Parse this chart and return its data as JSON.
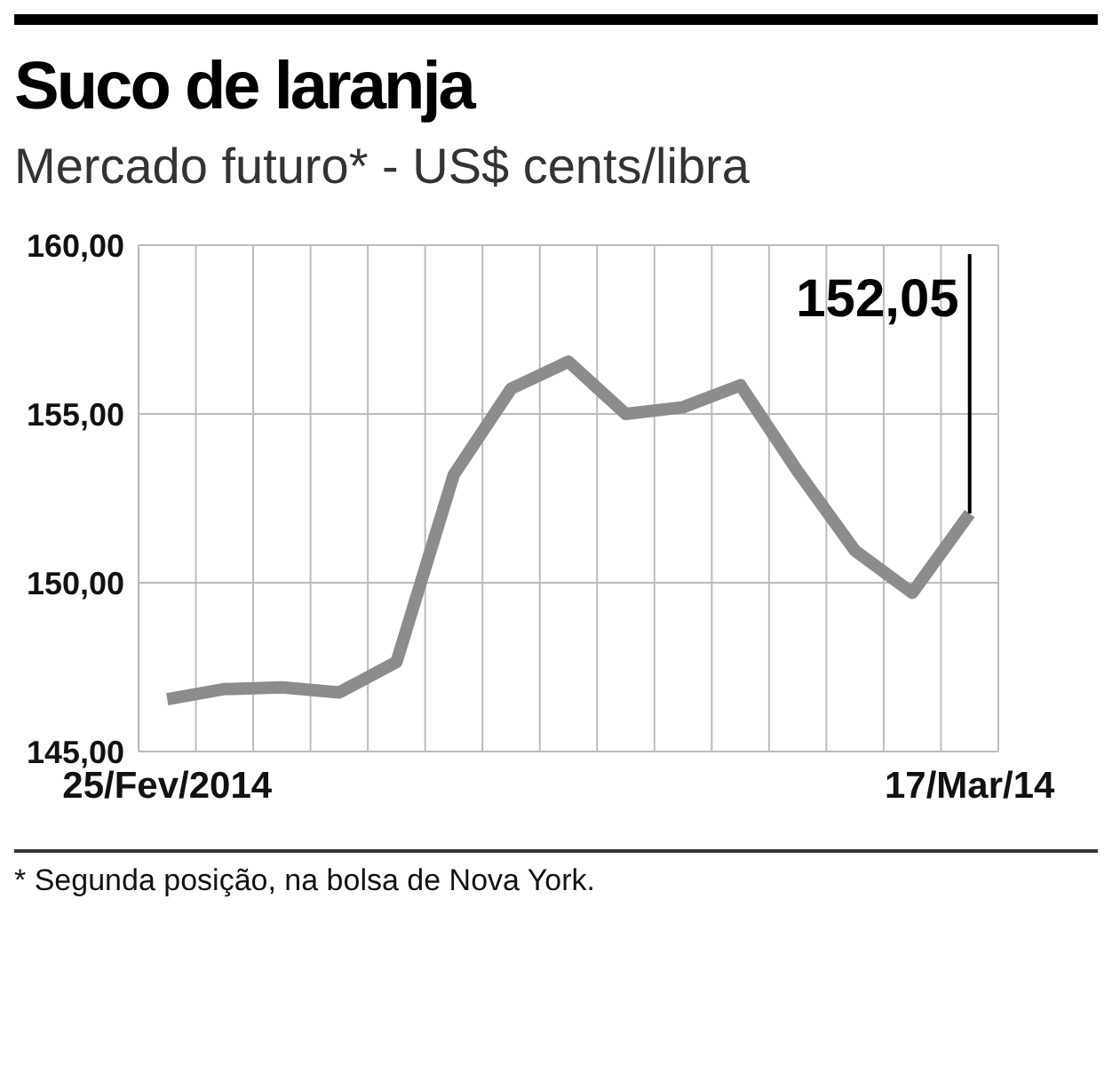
{
  "chart_data": {
    "type": "line",
    "title": "Suco de laranja",
    "subtitle": "Mercado futuro* - US$ cents/libra",
    "categories": [
      "25/Fev/2014",
      null,
      null,
      null,
      null,
      null,
      null,
      null,
      null,
      null,
      null,
      null,
      null,
      null,
      "17/Mar/14"
    ],
    "series": [
      {
        "color": "#8c8c8c",
        "values": [
          146.55,
          146.85,
          146.9,
          146.75,
          147.65,
          153.2,
          155.75,
          156.55,
          155.0,
          155.2,
          155.85,
          153.3,
          150.95,
          149.7,
          152.05
        ]
      }
    ],
    "ylim": [
      145,
      160
    ],
    "yticks": [
      {
        "value": 145,
        "label": "145,00"
      },
      {
        "value": 150,
        "label": "150,00"
      },
      {
        "value": 155,
        "label": "155,00"
      },
      {
        "value": 160,
        "label": "160,00"
      }
    ],
    "grid": true,
    "marker": "none",
    "line_style": "solid",
    "legend": false,
    "annotations": [
      {
        "text": "152,05",
        "x": "17/Mar/14",
        "y": 152.05
      },
      "* Segunda posição, na bolsa de Nova York."
    ]
  }
}
